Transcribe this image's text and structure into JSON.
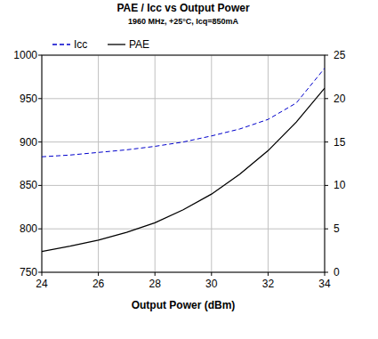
{
  "chart_data": {
    "type": "line",
    "title": "PAE / Icc vs Output Power",
    "subtitle": "1960 MHz, +25°C, Icq=850mA",
    "x_label": "Output Power (dBm)",
    "x": [
      24,
      25,
      26,
      27,
      28,
      29,
      30,
      31,
      32,
      33,
      34
    ],
    "series": [
      {
        "name": "Icc",
        "color": "#0000cc",
        "line_style": "dashed",
        "axis": "y",
        "values": [
          883,
          885,
          888,
          891,
          895,
          900,
          907,
          915,
          926,
          945,
          985
        ]
      },
      {
        "name": "PAE",
        "color": "#000000",
        "line_style": "solid",
        "axis": "y2",
        "values": [
          2.4,
          3.0,
          3.7,
          4.6,
          5.7,
          7.2,
          9.0,
          11.3,
          14.0,
          17.3,
          21.2
        ]
      }
    ],
    "xlim": [
      24,
      34
    ],
    "xticks": [
      24,
      26,
      28,
      30,
      32,
      34
    ],
    "ylim": [
      750,
      1000
    ],
    "yticks": [
      750,
      800,
      850,
      900,
      950,
      1000
    ],
    "y2lim": [
      0,
      25
    ],
    "y2ticks": [
      0,
      5,
      10,
      15,
      20,
      25
    ],
    "grid": true,
    "legend": "top-left"
  }
}
